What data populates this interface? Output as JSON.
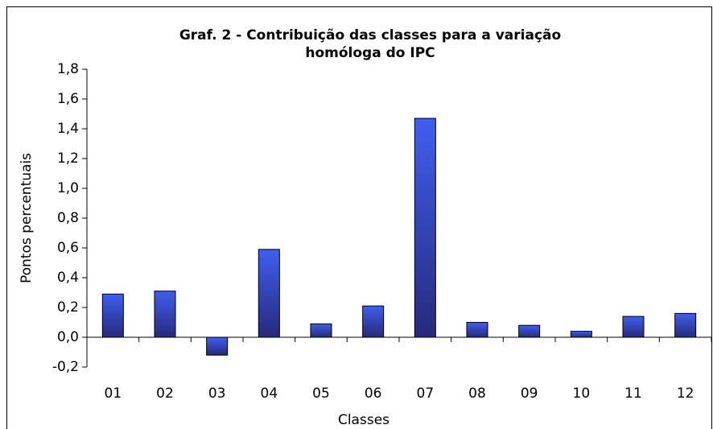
{
  "chart_data": {
    "type": "bar",
    "title": "Graf. 2 - Contribuição das classes para a variação homóloga do IPC",
    "x_label": "Classes",
    "y_label": "Pontos percentuais",
    "categories": [
      "01",
      "02",
      "03",
      "04",
      "05",
      "06",
      "07",
      "08",
      "09",
      "10",
      "11",
      "12"
    ],
    "values": [
      0.29,
      0.31,
      -0.12,
      0.59,
      0.09,
      0.21,
      1.47,
      0.1,
      0.08,
      0.04,
      0.14,
      0.16
    ],
    "color": "#3f5ff0",
    "ylim": [
      -0.2,
      1.8
    ],
    "yticks": [
      {
        "value": -0.2,
        "label": "-0,2"
      },
      {
        "value": 0,
        "label": "0,0"
      },
      {
        "value": 0.2,
        "label": "0,2"
      },
      {
        "value": 0.4,
        "label": "0,4"
      },
      {
        "value": 0.6,
        "label": "0,6"
      },
      {
        "value": 0.8,
        "label": "0,8"
      },
      {
        "value": 1.0,
        "label": "1,0"
      },
      {
        "value": 1.2,
        "label": "1,2"
      },
      {
        "value": 1.4,
        "label": "1,4"
      },
      {
        "value": 1.6,
        "label": "1,6"
      },
      {
        "value": 1.8,
        "label": "1,8"
      }
    ],
    "grid": false
  }
}
